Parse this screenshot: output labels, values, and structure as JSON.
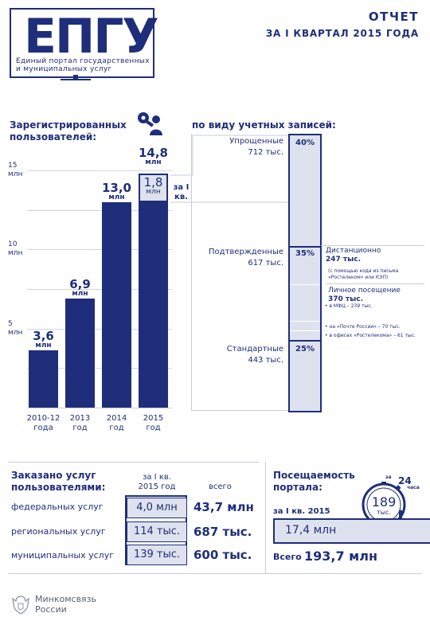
{
  "header": {
    "logo_word": "ЕПГУ",
    "logo_sub_line1": "Единый портал государственных",
    "logo_sub_line2": "и муниципальных услуг",
    "title": "ОТЧЕТ",
    "subtitle": "ЗА I КВАРТАЛ 2015 ГОДА"
  },
  "users": {
    "title_line1": "Зарегистрированных",
    "title_line2": "пользователей:",
    "y_tick_unit": "млн",
    "chart_data": {
      "type": "bar",
      "categories": [
        "2010-12 года",
        "2013 год",
        "2014 год",
        "2015 год"
      ],
      "values": [
        3.6,
        6.9,
        13.0,
        14.8
      ],
      "q1_increment": 1.8,
      "ylim": [
        0,
        15
      ],
      "yticks": [
        "5",
        "10",
        "15"
      ],
      "value_labels": [
        "3,6",
        "6,9",
        "13,0",
        "14,8"
      ],
      "unit": "млн",
      "q1_label": "1,8",
      "q1_text": "за I кв."
    },
    "x_labels": [
      [
        "2010-12",
        "года"
      ],
      [
        "2013",
        "год"
      ],
      [
        "2014",
        "год"
      ],
      [
        "2015",
        "год"
      ]
    ]
  },
  "accounts": {
    "title": "по виду учетных записей:",
    "types": [
      {
        "name": "Упрощенные",
        "value": "712 тыс.",
        "pct": "40%"
      },
      {
        "name": "Подтвержденные",
        "value": "617 тыс.",
        "pct": "35%"
      },
      {
        "name": "Стандартные",
        "value": "443 тыс.",
        "pct": "25%"
      }
    ],
    "remote_title": "Дистанционно",
    "remote_value": "247 тыс.",
    "remote_note": "(с помощью кода из письма «Ростелеком» или КЭП)",
    "personal_title": "Личное посещение",
    "personal_value": "370 тыс.",
    "personal_items": [
      "в МФЦ – 239 тыс.",
      "на «Почте России» – 70 тыс.",
      "в офисах «Ростелекома» – 61 тыс."
    ]
  },
  "services": {
    "title_line1": "Заказано  услуг",
    "title_line2": "пользователями:",
    "col_quarter_line1": "за I кв.",
    "col_quarter_line2": "2015 год",
    "col_total": "всего",
    "rows": [
      {
        "label": "федеральных услуг",
        "quarter": "4,0 млн",
        "total": "43,7 млн"
      },
      {
        "label": "региональных услуг",
        "quarter": "114 тыс.",
        "total": "687 тыс."
      },
      {
        "label": "муниципальных услуг",
        "quarter": "139 тыс.",
        "total": "600 тыс."
      }
    ]
  },
  "visits": {
    "title_line1": "Посещаемость",
    "title_line2": "портала:",
    "clock_prefix": "за",
    "clock_hours": "24",
    "clock_unit": "часа",
    "clock_value": "189",
    "clock_value_unit": "тыс.",
    "quarter_label": "за I кв. 2015",
    "quarter_value": "17,4 млн",
    "total_label": "Всего",
    "total_value": "193,7 млн"
  },
  "footer": {
    "ministry_line1": "Минкомсвязь",
    "ministry_line2": "России"
  }
}
